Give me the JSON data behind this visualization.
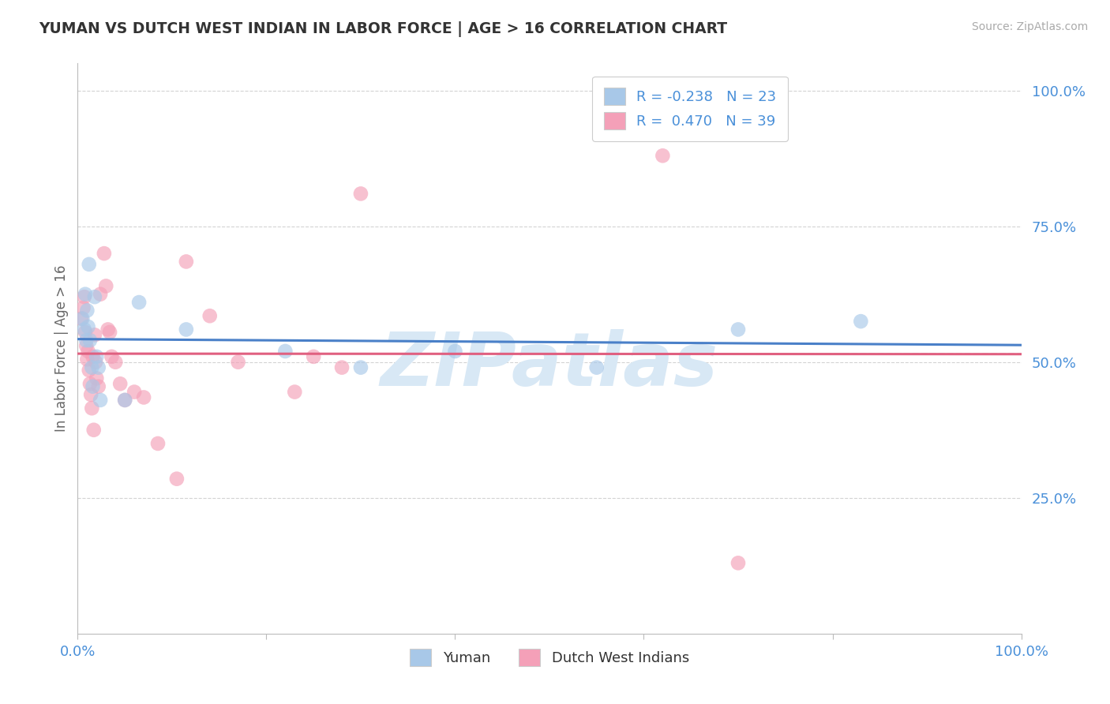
{
  "title": "YUMAN VS DUTCH WEST INDIAN IN LABOR FORCE | AGE > 16 CORRELATION CHART",
  "source": "Source: ZipAtlas.com",
  "ylabel": "In Labor Force | Age > 16",
  "yuman_R": -0.238,
  "yuman_N": 23,
  "dutch_R": 0.47,
  "dutch_N": 39,
  "yuman_color": "#a8c8e8",
  "dutch_color": "#f4a0b8",
  "yuman_line_color": "#4a80c8",
  "dutch_line_color": "#e06080",
  "watermark": "ZIPatlas",
  "watermark_color": "#d8e8f5",
  "legend_label_yuman": "Yuman",
  "legend_label_dutch": "Dutch West Indians",
  "yuman_points_x": [
    0.005,
    0.007,
    0.008,
    0.009,
    0.01,
    0.011,
    0.012,
    0.013,
    0.015,
    0.016,
    0.018,
    0.02,
    0.022,
    0.024,
    0.05,
    0.065,
    0.115,
    0.22,
    0.3,
    0.4,
    0.55,
    0.7,
    0.83
  ],
  "yuman_points_y": [
    0.58,
    0.56,
    0.625,
    0.54,
    0.595,
    0.565,
    0.68,
    0.54,
    0.49,
    0.455,
    0.62,
    0.51,
    0.49,
    0.43,
    0.43,
    0.61,
    0.56,
    0.52,
    0.49,
    0.52,
    0.49,
    0.56,
    0.575
  ],
  "dutch_points_x": [
    0.004,
    0.006,
    0.007,
    0.008,
    0.009,
    0.01,
    0.011,
    0.012,
    0.013,
    0.014,
    0.015,
    0.016,
    0.017,
    0.018,
    0.019,
    0.02,
    0.022,
    0.024,
    0.028,
    0.03,
    0.032,
    0.034,
    0.036,
    0.04,
    0.045,
    0.05,
    0.06,
    0.07,
    0.085,
    0.105,
    0.115,
    0.14,
    0.17,
    0.23,
    0.25,
    0.28,
    0.3,
    0.62,
    0.7
  ],
  "dutch_points_y": [
    0.58,
    0.6,
    0.62,
    0.555,
    0.53,
    0.505,
    0.52,
    0.485,
    0.46,
    0.44,
    0.415,
    0.51,
    0.375,
    0.55,
    0.5,
    0.47,
    0.455,
    0.625,
    0.7,
    0.64,
    0.56,
    0.555,
    0.51,
    0.5,
    0.46,
    0.43,
    0.445,
    0.435,
    0.35,
    0.285,
    0.685,
    0.585,
    0.5,
    0.445,
    0.51,
    0.49,
    0.81,
    0.88,
    0.13
  ],
  "xlim": [
    0.0,
    1.0
  ],
  "ylim": [
    0.0,
    1.05
  ],
  "yticks": [
    0.25,
    0.5,
    0.75,
    1.0
  ],
  "ytick_labels": [
    "25.0%",
    "50.0%",
    "75.0%",
    "100.0%"
  ],
  "background_color": "#ffffff",
  "grid_color": "#cccccc",
  "title_color": "#333333",
  "tick_label_color": "#4a90d9",
  "r_color": "#4a90d9"
}
